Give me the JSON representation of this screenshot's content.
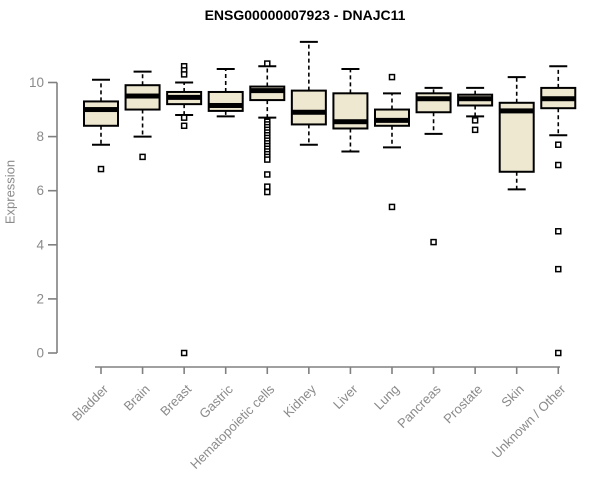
{
  "title": "ENSG00000007923 - DNAJC11",
  "chart_data": {
    "type": "boxplot",
    "title": "ENSG00000007923 - DNAJC11",
    "xlabel": "",
    "ylabel": "Expression",
    "ylim": [
      0,
      11.6
    ],
    "yticks": [
      0,
      2,
      4,
      6,
      8,
      10
    ],
    "grid": false,
    "legend": "none",
    "box_fill_color": "#efe8d1",
    "box_border_color": "#000000",
    "median_color": "#000000",
    "axis_color": "#808080",
    "tick_label_color": "#8a8a8a",
    "title_color": "#000000",
    "categories": [
      "Bladder",
      "Brain",
      "Breast",
      "Gastric",
      "Hematopoietic cells",
      "Kidney",
      "Liver",
      "Lung",
      "Pancreas",
      "Prostate",
      "Skin",
      "Unknown / Other"
    ],
    "boxes": [
      {
        "category": "Bladder",
        "whisker_low": 7.7,
        "q1": 8.4,
        "median": 9.0,
        "q3": 9.3,
        "whisker_high": 10.1,
        "outliers": [
          6.8
        ]
      },
      {
        "category": "Brain",
        "whisker_low": 8.0,
        "q1": 9.0,
        "median": 9.5,
        "q3": 9.9,
        "whisker_high": 10.4,
        "outliers": [
          7.25
        ]
      },
      {
        "category": "Breast",
        "whisker_low": 8.8,
        "q1": 9.2,
        "median": 9.45,
        "q3": 9.65,
        "whisker_high": 10.0,
        "outliers": [
          10.6,
          10.45,
          10.3,
          8.7,
          8.4,
          0
        ]
      },
      {
        "category": "Gastric",
        "whisker_low": 8.75,
        "q1": 8.95,
        "median": 9.15,
        "q3": 9.65,
        "whisker_high": 10.5,
        "outliers": []
      },
      {
        "category": "Hematopoietic cells",
        "whisker_low": 8.7,
        "q1": 9.35,
        "median": 9.7,
        "q3": 9.85,
        "whisker_high": 10.6,
        "outliers": [
          10.7,
          8.55,
          8.45,
          8.35,
          8.25,
          8.15,
          8.05,
          7.95,
          7.85,
          7.75,
          7.65,
          7.55,
          7.45,
          7.35,
          7.25,
          7.15,
          6.6,
          6.15,
          5.95
        ]
      },
      {
        "category": "Kidney",
        "whisker_low": 7.7,
        "q1": 8.45,
        "median": 8.9,
        "q3": 9.7,
        "whisker_high": 11.5,
        "outliers": []
      },
      {
        "category": "Liver",
        "whisker_low": 7.45,
        "q1": 8.3,
        "median": 8.55,
        "q3": 9.6,
        "whisker_high": 10.5,
        "outliers": []
      },
      {
        "category": "Lung",
        "whisker_low": 7.6,
        "q1": 8.4,
        "median": 8.6,
        "q3": 9.0,
        "whisker_high": 9.6,
        "outliers": [
          10.2,
          5.4
        ]
      },
      {
        "category": "Pancreas",
        "whisker_low": 8.1,
        "q1": 8.9,
        "median": 9.4,
        "q3": 9.6,
        "whisker_high": 9.8,
        "outliers": [
          4.1
        ]
      },
      {
        "category": "Prostate",
        "whisker_low": 8.75,
        "q1": 9.15,
        "median": 9.4,
        "q3": 9.55,
        "whisker_high": 9.8,
        "outliers": [
          8.6,
          8.25
        ]
      },
      {
        "category": "Skin",
        "whisker_low": 6.05,
        "q1": 6.7,
        "median": 8.95,
        "q3": 9.25,
        "whisker_high": 10.2,
        "outliers": []
      },
      {
        "category": "Unknown / Other",
        "whisker_low": 8.05,
        "q1": 9.05,
        "median": 9.4,
        "q3": 9.8,
        "whisker_high": 10.6,
        "outliers": [
          7.7,
          6.95,
          4.5,
          3.1,
          0
        ]
      }
    ]
  }
}
